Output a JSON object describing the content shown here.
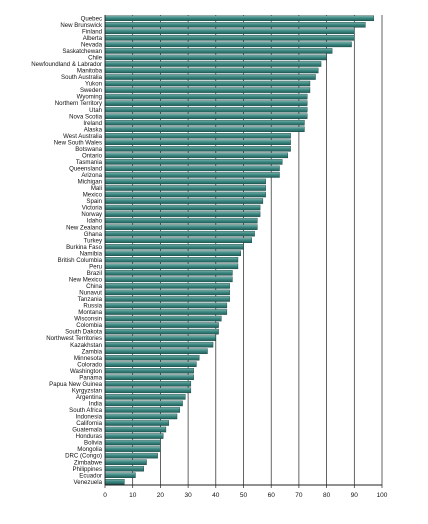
{
  "chart_data": {
    "type": "bar",
    "orientation": "horizontal",
    "categories": [
      "Quebec",
      "New Brunswick",
      "Finland",
      "Alberta",
      "Nevada",
      "Saskatchewan",
      "Chile",
      "Newfoundland & Labrador",
      "Manitoba",
      "South Australia",
      "Yukon",
      "Sweden",
      "Wyoming",
      "Northern Territory",
      "Utah",
      "Nova Scotia",
      "Ireland",
      "Alaska",
      "West Australia",
      "New South Wales",
      "Botswana",
      "Ontario",
      "Tasmania",
      "Queensland",
      "Arizona",
      "Michigan",
      "Mali",
      "Mexico",
      "Spain",
      "Victoria",
      "Norway",
      "Idaho",
      "New Zealand",
      "Ghana",
      "Turkey",
      "Burkina Faso",
      "Namibia",
      "British Columbia",
      "Peru",
      "Brazil",
      "New Mexico",
      "China",
      "Nunavut",
      "Tanzania",
      "Russia",
      "Montana",
      "Wisconsin",
      "Colombia",
      "South Dakota",
      "Northwest Territories",
      "Kazakhstan",
      "Zambia",
      "Minnesota",
      "Colorado",
      "Washington",
      "Panama",
      "Papua New Guinea",
      "Kyrgyzstan",
      "Argentina",
      "India",
      "South Africa",
      "Indonesia",
      "California",
      "Guatemala",
      "Honduras",
      "Bolivia",
      "Mongolia",
      "DRC (Congo)",
      "Zimbabwe",
      "Philippines",
      "Ecuador",
      "Venezuela"
    ],
    "values": [
      97,
      94,
      90,
      90,
      89,
      82,
      80,
      78,
      77,
      76,
      74,
      74,
      73,
      73,
      73,
      73,
      72,
      72,
      67,
      67,
      67,
      66,
      64,
      63,
      63,
      58,
      58,
      58,
      57,
      56,
      56,
      55,
      55,
      54,
      53,
      50,
      49,
      48,
      48,
      46,
      46,
      45,
      45,
      45,
      44,
      44,
      42,
      41,
      41,
      40,
      39,
      37,
      34,
      33,
      32,
      32,
      31,
      31,
      29,
      28,
      27,
      26,
      23,
      22,
      21,
      20,
      20,
      19,
      15,
      14,
      11,
      7
    ],
    "xlim": [
      0,
      100
    ],
    "xticks": [
      "0",
      "10",
      "20",
      "30",
      "40",
      "50",
      "60",
      "70",
      "80",
      "90",
      "100"
    ],
    "grid": "vertical",
    "colors": {
      "bar_fill_top": "#7fb5b0",
      "bar_fill_bottom": "#1f5f5a",
      "bar_edge": "#0f3a37",
      "grid": "#222222",
      "axis": "#222222"
    }
  }
}
